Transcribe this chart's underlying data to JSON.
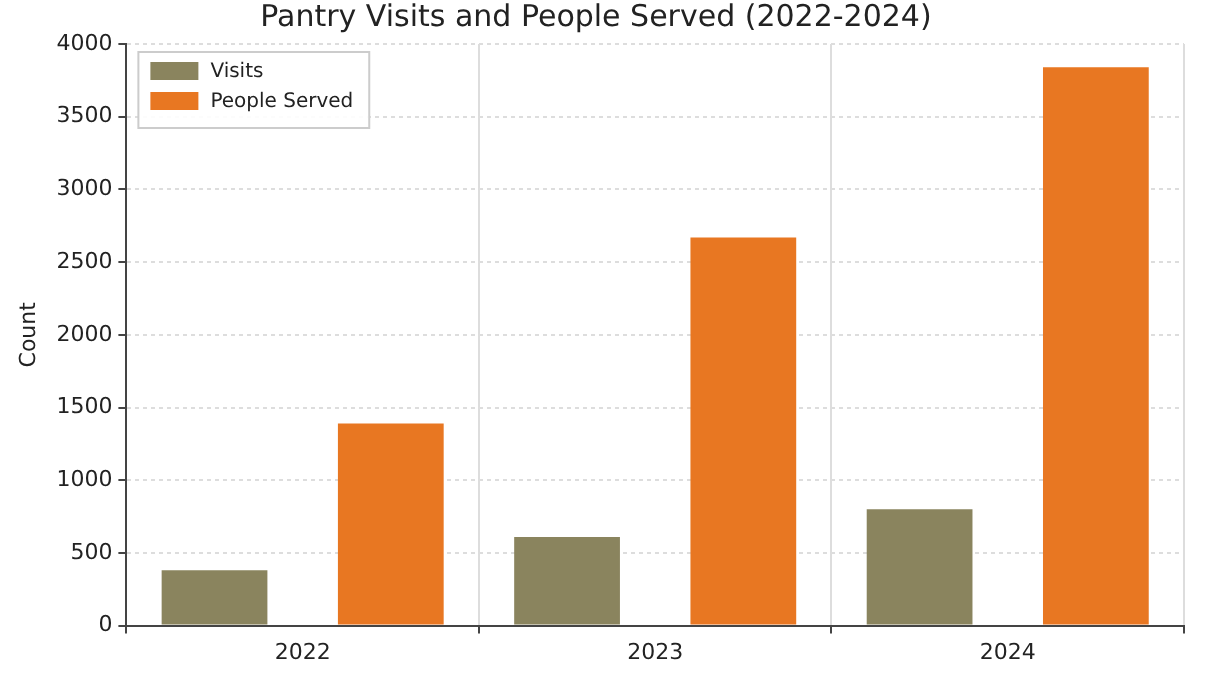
{
  "chart_data": {
    "type": "bar",
    "title": "Pantry Visits and People Served (2022-2024)",
    "ylabel": "Count",
    "categories": [
      "2022",
      "2023",
      "2024"
    ],
    "series": [
      {
        "name": "Visits",
        "color": "#8a845e",
        "values": [
          380,
          610,
          800
        ]
      },
      {
        "name": "People Served",
        "color": "#e87722",
        "values": [
          1390,
          2670,
          3840
        ]
      }
    ],
    "ylim": [
      0,
      4000
    ],
    "yticks": [
      0,
      500,
      1000,
      1500,
      2000,
      2500,
      3000,
      3500,
      4000
    ],
    "grid": true,
    "legend": "top left"
  }
}
